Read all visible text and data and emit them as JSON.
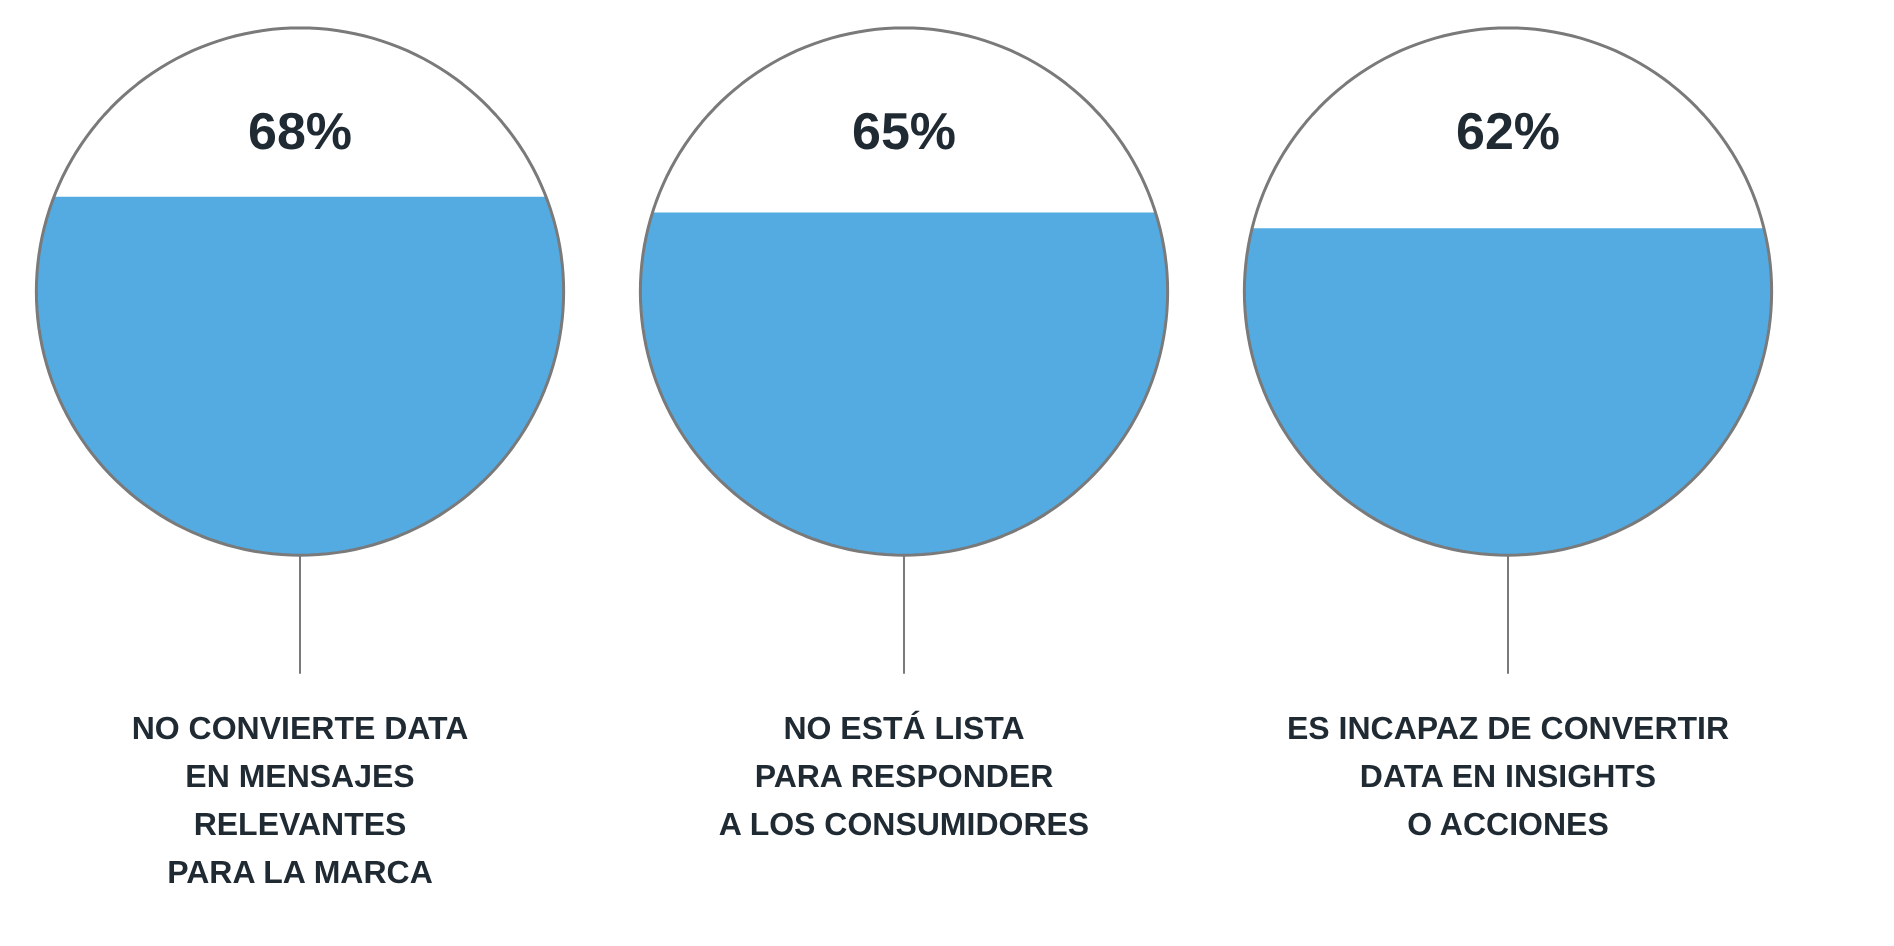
{
  "chart_data": {
    "type": "other",
    "categories": [
      "NO CONVIERTE DATA\nEN MENSAJES\nRELEVANTES\nPARA LA MARCA",
      "NO ESTÁ LISTA\nPARA RESPONDER\nA LOS CONSUMIDORES",
      "ES INCAPAZ DE CONVERTIR\nDATA EN INSIGHTS\nO ACCIONES"
    ],
    "values": [
      68,
      65,
      62
    ],
    "value_labels": [
      "68%",
      "65%",
      "62%"
    ],
    "colors": [
      "#4aa6e0",
      "#4aa6e0",
      "#4aa6e0"
    ]
  }
}
